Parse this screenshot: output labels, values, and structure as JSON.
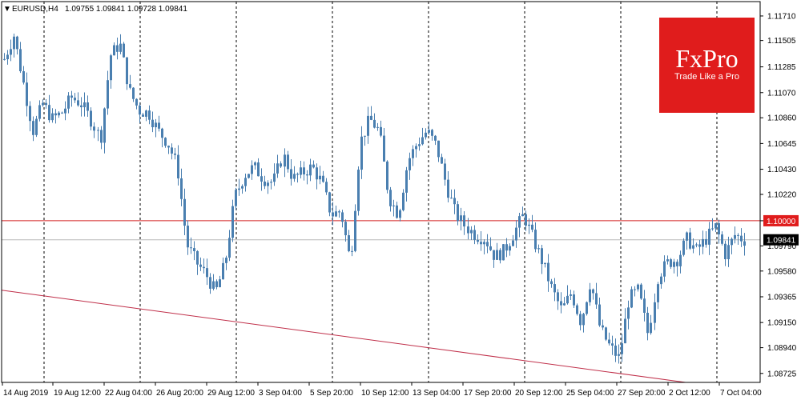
{
  "header": {
    "symbol": "EURUSD,H4",
    "ohlc": "1.09755 1.09841 1.09728 1.09841",
    "menu_glyph": "▼"
  },
  "brand": {
    "name": "FxPro",
    "tagline": "Trade Like a Pro",
    "color": "#e01c1c"
  },
  "price_badges": {
    "level": "1.10000",
    "level_color": "#e01c1c",
    "last": "1.09841"
  },
  "chart_data": {
    "type": "candlestick",
    "symbol": "EURUSD",
    "timeframe": "H4",
    "ylim": [
      1.0865,
      1.1183
    ],
    "y_ticks": [
      "1.11710",
      "1.11505",
      "1.11285",
      "1.11070",
      "1.10860",
      "1.10645",
      "1.10430",
      "1.10220",
      "1.10000",
      "1.09790",
      "1.09580",
      "1.09365",
      "1.09150",
      "1.08940",
      "1.08725"
    ],
    "x_labels": [
      "14 Aug 2019",
      "19 Aug 12:00",
      "22 Aug 04:00",
      "26 Aug 20:00",
      "29 Aug 12:00",
      "3 Sep 04:00",
      "5 Sep 20:00",
      "10 Sep 12:00",
      "13 Sep 04:00",
      "17 Sep 20:00",
      "20 Sep 12:00",
      "25 Sep 04:00",
      "27 Sep 20:00",
      "2 Oct 12:00",
      "7 Oct 04:00"
    ],
    "horizontal_line": 1.1,
    "last_price": 1.09841,
    "trendline": {
      "start": 1.0942,
      "end": 1.0865
    },
    "close_path": [
      1.1135,
      1.1155,
      1.1115,
      1.1075,
      1.1098,
      1.1085,
      1.109,
      1.1103,
      1.1098,
      1.1085,
      1.1068,
      1.1138,
      1.1148,
      1.1108,
      1.1092,
      1.109,
      1.1075,
      1.1065,
      1.1045,
      1.098,
      1.0965,
      1.0955,
      1.094,
      1.0965,
      1.102,
      1.1038,
      1.1045,
      1.1035,
      1.1032,
      1.1055,
      1.1035,
      1.104,
      1.1045,
      1.1032,
      1.1005,
      1.1008,
      1.0965,
      1.1065,
      1.1085,
      1.1075,
      1.102,
      1.1005,
      1.105,
      1.1065,
      1.1075,
      1.1062,
      1.103,
      1.1005,
      1.0995,
      1.0988,
      1.0985,
      1.097,
      1.0975,
      1.099,
      1.1005,
      1.0985,
      1.0965,
      1.0942,
      1.0925,
      1.094,
      1.0915,
      1.095,
      1.091,
      1.0895,
      1.0885,
      1.0935,
      1.0942,
      1.0905,
      1.0955,
      1.0965,
      1.0968,
      1.0985,
      1.0975,
      1.0985,
      1.0995,
      1.0972,
      1.0988,
      1.0984
    ],
    "grid_vertical": "dashed",
    "legend": "none"
  }
}
